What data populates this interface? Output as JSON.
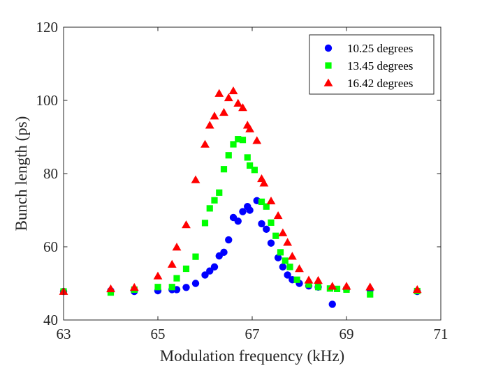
{
  "chart_data": {
    "type": "scatter",
    "title": "",
    "xlabel": "Modulation frequency (kHz)",
    "ylabel": "Bunch length (ps)",
    "xlim": [
      63,
      71
    ],
    "ylim": [
      40,
      120
    ],
    "xticks": [
      63,
      65,
      67,
      69,
      71
    ],
    "yticks": [
      40,
      60,
      80,
      100,
      120
    ],
    "grid": false,
    "legend_position": "top-right",
    "series": [
      {
        "name": "10.25 degrees",
        "color": "#0000ff",
        "marker": "circle",
        "points": [
          [
            63.0,
            47.8
          ],
          [
            64.0,
            48.0
          ],
          [
            64.5,
            47.8
          ],
          [
            65.0,
            48.0
          ],
          [
            65.3,
            48.3
          ],
          [
            65.4,
            48.3
          ],
          [
            65.6,
            48.9
          ],
          [
            65.8,
            50.0
          ],
          [
            66.0,
            52.3
          ],
          [
            66.1,
            53.4
          ],
          [
            66.2,
            54.5
          ],
          [
            66.3,
            57.5
          ],
          [
            66.4,
            58.5
          ],
          [
            66.5,
            61.9
          ],
          [
            66.6,
            68.0
          ],
          [
            66.7,
            67.0
          ],
          [
            66.8,
            69.6
          ],
          [
            66.9,
            71.0
          ],
          [
            66.95,
            70.0
          ],
          [
            67.1,
            72.6
          ],
          [
            67.2,
            66.3
          ],
          [
            67.3,
            64.8
          ],
          [
            67.4,
            61.0
          ],
          [
            67.55,
            57.0
          ],
          [
            67.65,
            54.5
          ],
          [
            67.75,
            52.3
          ],
          [
            67.85,
            51.0
          ],
          [
            68.0,
            50.0
          ],
          [
            68.2,
            49.3
          ],
          [
            68.4,
            49.0
          ],
          [
            68.7,
            44.3
          ],
          [
            69.0,
            48.5
          ],
          [
            69.5,
            48.3
          ],
          [
            70.5,
            47.8
          ]
        ]
      },
      {
        "name": "13.45 degrees",
        "color": "#00ff00",
        "marker": "square",
        "points": [
          [
            63.0,
            47.8
          ],
          [
            64.0,
            47.5
          ],
          [
            64.5,
            48.3
          ],
          [
            65.0,
            49.0
          ],
          [
            65.3,
            49.0
          ],
          [
            65.4,
            51.4
          ],
          [
            65.6,
            54.0
          ],
          [
            65.8,
            57.3
          ],
          [
            66.0,
            66.5
          ],
          [
            66.1,
            70.5
          ],
          [
            66.2,
            72.7
          ],
          [
            66.3,
            74.8
          ],
          [
            66.4,
            81.2
          ],
          [
            66.5,
            85.0
          ],
          [
            66.6,
            88.0
          ],
          [
            66.7,
            89.4
          ],
          [
            66.8,
            89.2
          ],
          [
            66.9,
            84.4
          ],
          [
            66.95,
            82.2
          ],
          [
            67.05,
            81.0
          ],
          [
            67.2,
            72.3
          ],
          [
            67.3,
            71.0
          ],
          [
            67.4,
            66.6
          ],
          [
            67.5,
            63.0
          ],
          [
            67.6,
            58.5
          ],
          [
            67.7,
            56.2
          ],
          [
            67.8,
            54.5
          ],
          [
            67.95,
            51.0
          ],
          [
            68.2,
            49.7
          ],
          [
            68.4,
            49.0
          ],
          [
            68.65,
            48.6
          ],
          [
            68.8,
            48.5
          ],
          [
            69.0,
            48.3
          ],
          [
            69.5,
            47.0
          ],
          [
            70.5,
            47.9
          ]
        ]
      },
      {
        "name": "16.42 degrees",
        "color": "#ff0000",
        "marker": "triangle",
        "points": [
          [
            63.0,
            47.8
          ],
          [
            64.0,
            48.5
          ],
          [
            64.5,
            48.9
          ],
          [
            65.0,
            52.0
          ],
          [
            65.3,
            55.2
          ],
          [
            65.4,
            59.9
          ],
          [
            65.6,
            66.0
          ],
          [
            65.8,
            78.3
          ],
          [
            66.0,
            88.0
          ],
          [
            66.1,
            93.2
          ],
          [
            66.2,
            95.7
          ],
          [
            66.3,
            101.9
          ],
          [
            66.4,
            96.7
          ],
          [
            66.5,
            100.7
          ],
          [
            66.6,
            102.6
          ],
          [
            66.7,
            99.2
          ],
          [
            66.8,
            98.0
          ],
          [
            66.9,
            93.2
          ],
          [
            66.95,
            92.2
          ],
          [
            67.1,
            89.0
          ],
          [
            67.2,
            78.6
          ],
          [
            67.25,
            77.4
          ],
          [
            67.4,
            72.5
          ],
          [
            67.55,
            68.5
          ],
          [
            67.65,
            63.8
          ],
          [
            67.75,
            61.2
          ],
          [
            67.85,
            57.4
          ],
          [
            68.0,
            54.0
          ],
          [
            68.2,
            50.9
          ],
          [
            68.4,
            50.8
          ],
          [
            68.7,
            49.2
          ],
          [
            69.0,
            49.2
          ],
          [
            69.5,
            49.0
          ],
          [
            70.5,
            48.3
          ]
        ]
      }
    ]
  }
}
